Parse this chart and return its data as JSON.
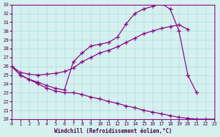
{
  "xlabel": "Windchill (Refroidissement éolien,°C)",
  "background_color": "#d6f0f0",
  "grid_color": "#aadddd",
  "line_color": "#880088",
  "xlim": [
    0,
    23
  ],
  "ylim": [
    20,
    33
  ],
  "yticks": [
    20,
    21,
    22,
    23,
    24,
    25,
    26,
    27,
    28,
    29,
    30,
    31,
    32,
    33
  ],
  "xticks": [
    0,
    1,
    2,
    3,
    4,
    5,
    6,
    7,
    8,
    9,
    10,
    11,
    12,
    13,
    14,
    15,
    16,
    17,
    18,
    19,
    20,
    21,
    22,
    23
  ],
  "line1_x": [
    0,
    1,
    2,
    3,
    4,
    5,
    6,
    7,
    8,
    9,
    10,
    11,
    12,
    13,
    14,
    15,
    16,
    17,
    18,
    19,
    20,
    21
  ],
  "line1_y": [
    26.0,
    25.0,
    24.5,
    24.2,
    23.8,
    23.5,
    23.3,
    26.5,
    27.5,
    28.3,
    28.5,
    28.7,
    29.3,
    30.8,
    32.0,
    32.5,
    32.8,
    33.1,
    32.5,
    30.0,
    25.0,
    23.0
  ],
  "line2_x": [
    0,
    1,
    2,
    3,
    4,
    5,
    6,
    7,
    8,
    9,
    10,
    11,
    12,
    13,
    14,
    15,
    16,
    17,
    18,
    19,
    20
  ],
  "line2_y": [
    26.0,
    25.3,
    25.1,
    25.0,
    25.1,
    25.2,
    25.4,
    25.8,
    26.5,
    27.0,
    27.5,
    27.8,
    28.2,
    28.7,
    29.2,
    29.7,
    30.0,
    30.3,
    30.5,
    30.7,
    30.2
  ],
  "line3_x": [
    0,
    1,
    2,
    3,
    4,
    5,
    6,
    7,
    8,
    9,
    10,
    11,
    12,
    13,
    14,
    15,
    16,
    17,
    18,
    19,
    20,
    21,
    22,
    23
  ],
  "line3_y": [
    26.0,
    25.0,
    24.5,
    24.0,
    23.5,
    23.2,
    23.0,
    23.0,
    22.8,
    22.5,
    22.3,
    22.0,
    21.8,
    21.5,
    21.3,
    21.0,
    20.8,
    20.6,
    20.4,
    20.2,
    20.1,
    20.0,
    20.0,
    20.0
  ],
  "markersize": 4,
  "linewidth": 0.9
}
